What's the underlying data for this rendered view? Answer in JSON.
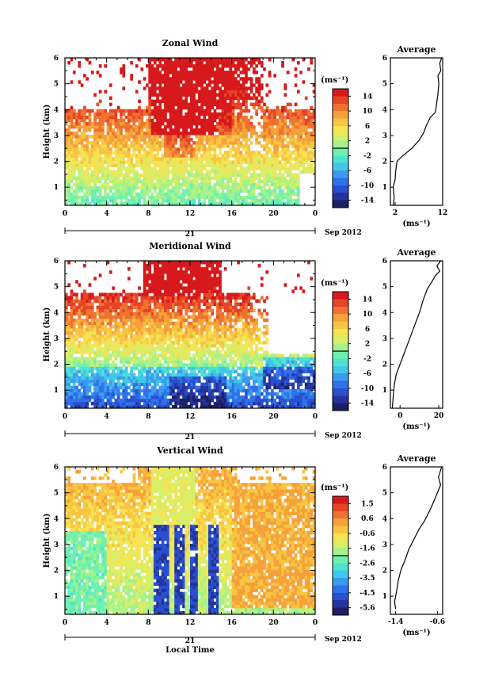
{
  "figure": {
    "date_label": "Sep 2012",
    "day_label": "21",
    "xlabel": "Local Time",
    "ylabel": "Height (km)",
    "x_ticks": [
      "0",
      "4",
      "8",
      "12",
      "16",
      "20",
      "0"
    ],
    "y_ticks": [
      "1",
      "2",
      "3",
      "4",
      "5",
      "6"
    ],
    "colorbar_unit": "(ms⁻¹)",
    "profile_title": "Average",
    "profile_unit": "(ms⁻¹)",
    "colormap": [
      "#1d1f63",
      "#24349a",
      "#2a4fd0",
      "#3071e8",
      "#3c9bf0",
      "#40c8e8",
      "#4ee3cf",
      "#6ff0b0",
      "#a4f28c",
      "#d6ee68",
      "#f5e354",
      "#f8c542",
      "#f6a13a",
      "#ef7330",
      "#e64426",
      "#d7191c"
    ]
  },
  "chart_data": [
    {
      "type": "heatmap",
      "title": "Zonal Wind",
      "xlabel": "",
      "ylabel": "Height (km)",
      "xlim": [
        0,
        24
      ],
      "ylim": [
        0.3,
        6
      ],
      "colorbar": {
        "range": [
          -16,
          16
        ],
        "ticks": [
          "14",
          "10",
          "6",
          "2",
          "-2",
          "-6",
          "-10",
          "-14"
        ]
      },
      "profile": {
        "title": "Average",
        "xlim": [
          1,
          12
        ],
        "xticks": [
          "2",
          "12"
        ],
        "ylim": [
          0.3,
          6
        ],
        "points": [
          [
            1.6,
            0.3
          ],
          [
            1.8,
            0.6
          ],
          [
            1.6,
            1.0
          ],
          [
            2.0,
            1.3
          ],
          [
            2.1,
            1.6
          ],
          [
            2.4,
            2.0
          ],
          [
            3.5,
            2.2
          ],
          [
            5.5,
            2.5
          ],
          [
            7.0,
            2.8
          ],
          [
            8.0,
            3.1
          ],
          [
            8.6,
            3.4
          ],
          [
            9.4,
            3.7
          ],
          [
            10.5,
            3.9
          ],
          [
            10.7,
            4.2
          ],
          [
            11.0,
            4.6
          ],
          [
            11.2,
            5.0
          ],
          [
            11.0,
            5.3
          ],
          [
            11.6,
            5.5
          ],
          [
            11.4,
            5.8
          ],
          [
            11.8,
            6.0
          ]
        ]
      }
    },
    {
      "type": "heatmap",
      "title": "Meridional Wind",
      "xlabel": "",
      "ylabel": "Height (km)",
      "xlim": [
        0,
        24
      ],
      "ylim": [
        0.3,
        6
      ],
      "colorbar": {
        "range": [
          -16,
          16
        ],
        "ticks": [
          "14",
          "10",
          "6",
          "2",
          "-2",
          "-6",
          "-10",
          "-14"
        ]
      },
      "profile": {
        "title": "Average",
        "xlim": [
          -5,
          22
        ],
        "xticks": [
          "0",
          "20"
        ],
        "ylim": [
          0.3,
          6
        ],
        "points": [
          [
            -4.0,
            0.3
          ],
          [
            -3.5,
            0.8
          ],
          [
            -3.0,
            1.2
          ],
          [
            -2.0,
            1.6
          ],
          [
            0.0,
            2.0
          ],
          [
            2.0,
            2.4
          ],
          [
            4.0,
            2.8
          ],
          [
            6.0,
            3.2
          ],
          [
            8.0,
            3.6
          ],
          [
            10.0,
            4.0
          ],
          [
            12.0,
            4.5
          ],
          [
            14.0,
            4.9
          ],
          [
            16.5,
            5.2
          ],
          [
            18.0,
            5.4
          ],
          [
            20.5,
            5.6
          ],
          [
            19.0,
            5.8
          ],
          [
            21.0,
            6.0
          ]
        ]
      }
    },
    {
      "type": "heatmap",
      "title": "Vertical Wind",
      "xlabel": "Local Time",
      "ylabel": "Height (km)",
      "xlim": [
        0,
        24
      ],
      "ylim": [
        0.3,
        6
      ],
      "colorbar": {
        "range": [
          -6.4,
          2.4
        ],
        "ticks": [
          "1.5",
          "0.6",
          "-0.6",
          "-1.6",
          "-2.6",
          "-3.5",
          "-4.5",
          "-5.6"
        ]
      },
      "profile": {
        "title": "Average",
        "xlim": [
          -1.5,
          -0.5
        ],
        "xticks": [
          "-1.4",
          "-0.6"
        ],
        "ylim": [
          0.3,
          6
        ],
        "points": [
          [
            -1.4,
            0.5
          ],
          [
            -1.42,
            0.8
          ],
          [
            -1.38,
            1.2
          ],
          [
            -1.35,
            1.6
          ],
          [
            -1.3,
            2.0
          ],
          [
            -1.22,
            2.4
          ],
          [
            -1.15,
            2.8
          ],
          [
            -1.05,
            3.2
          ],
          [
            -0.95,
            3.6
          ],
          [
            -0.85,
            3.9
          ],
          [
            -0.75,
            4.3
          ],
          [
            -0.66,
            4.7
          ],
          [
            -0.6,
            5.0
          ],
          [
            -0.54,
            5.3
          ],
          [
            -0.58,
            5.6
          ],
          [
            -0.52,
            6.0
          ]
        ]
      }
    }
  ]
}
